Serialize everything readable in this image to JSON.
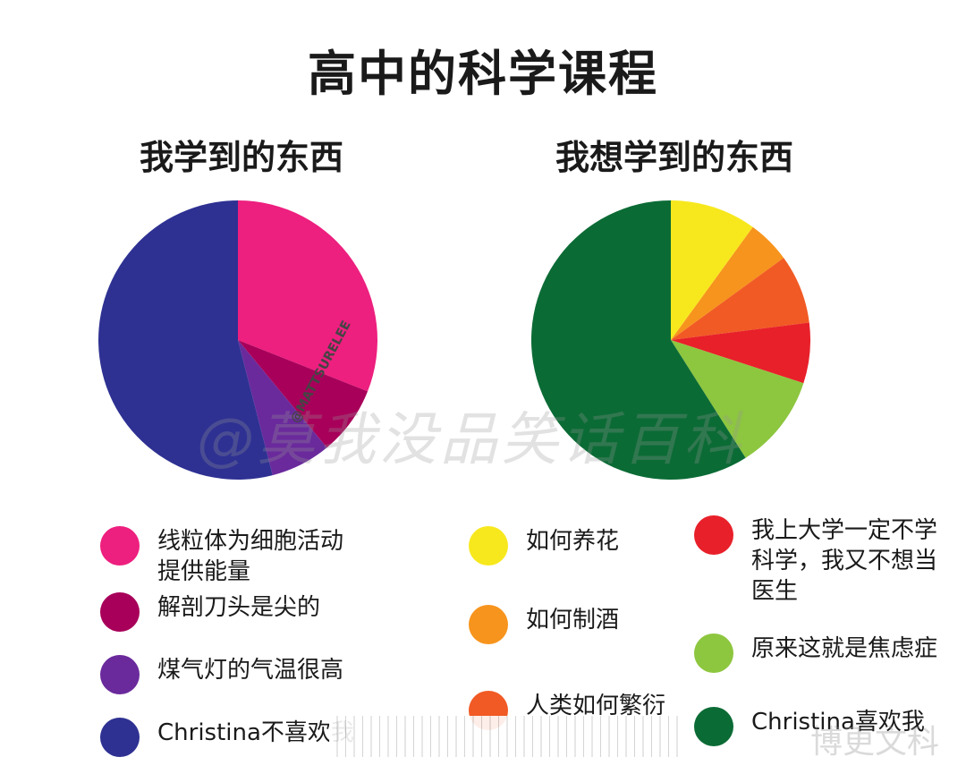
{
  "header": {
    "title": "高中的科学课程"
  },
  "left_chart": {
    "title": "我学到的东西"
  },
  "right_chart": {
    "title": "我想学到的东西"
  },
  "credit": "@MATTSURELEE",
  "watermark": "@莫我没品笑话百科",
  "corner_watermark": "博更文科",
  "chart_data": [
    {
      "type": "pie",
      "title": "我学到的东西",
      "slices": [
        {
          "label": "线粒体为细胞活动\n提供能量",
          "value": 31,
          "color": "#ED1F7F"
        },
        {
          "label": "解剖刀头是尖的",
          "value": 8,
          "color": "#A8005A"
        },
        {
          "label": "煤气灯的气温很高",
          "value": 7,
          "color": "#6A2A9C"
        },
        {
          "label": "Christina不喜欢我",
          "value": 54,
          "color": "#2E3192"
        }
      ]
    },
    {
      "type": "pie",
      "title": "我想学到的东西",
      "slices": [
        {
          "label": "如何养花",
          "value": 10,
          "color": "#F7E81E"
        },
        {
          "label": "如何制酒",
          "value": 5,
          "color": "#F7941D"
        },
        {
          "label": "人类如何繁衍",
          "value": 8,
          "color": "#F15A24"
        },
        {
          "label": "我上大学一定不学\n科学，我又不想当\n医生",
          "value": 7,
          "color": "#E8202A"
        },
        {
          "label": "原来这就是焦虑症",
          "value": 11,
          "color": "#8DC63F"
        },
        {
          "label": "Christina喜欢我",
          "value": 59,
          "color": "#0B6B35"
        }
      ]
    }
  ]
}
